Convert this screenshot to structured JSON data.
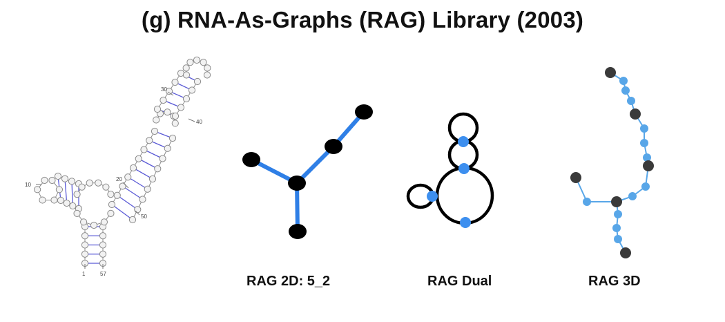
{
  "title": "(g) RNA-As-Graphs (RAG) Library (2003)",
  "secondary_structure": {
    "nucleotide_labels": [
      "1",
      "57",
      "10",
      "20",
      "30",
      "40",
      "50"
    ],
    "colors": {
      "backbone": "#8a8a8a",
      "pair": "#5a5ad6",
      "nucleotide_fill": "#f2f2f2"
    }
  },
  "rag_2d": {
    "caption": "RAG 2D: 5_2",
    "colors": {
      "vertex": "#000000",
      "edge": "#2f7fe6"
    }
  },
  "rag_dual": {
    "caption": "RAG Dual",
    "colors": {
      "loop": "#000000",
      "vertex": "#3d8fef"
    }
  },
  "rag_3d": {
    "caption": "RAG 3D",
    "colors": {
      "dark_node": "#3a3a3a",
      "light_node": "#58a6e8",
      "edge": "#58a6e8"
    }
  }
}
